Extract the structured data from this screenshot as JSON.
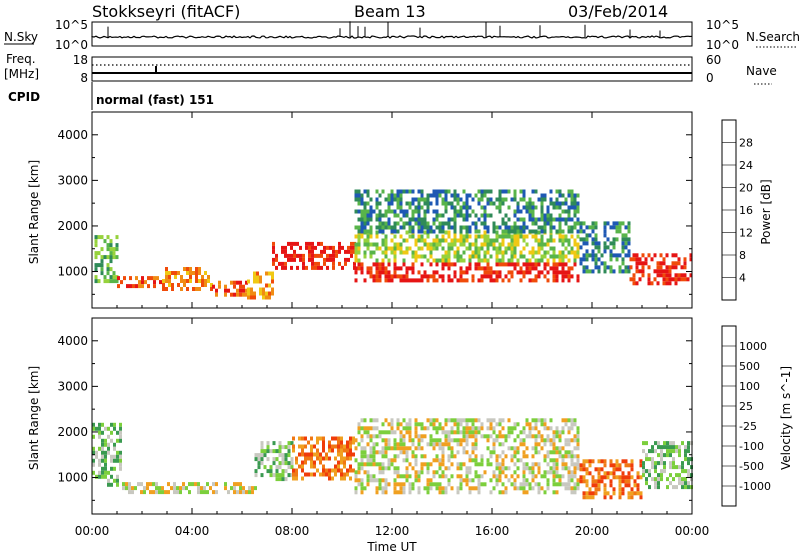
{
  "header": {
    "station": "Stokkseyri (fitACF)",
    "beam": "Beam 13",
    "date": "03/Feb/2014"
  },
  "strips": {
    "nsky_label": "N.Sky",
    "nsky_ticks": [
      "10^5",
      "10^0"
    ],
    "nsearch_label": "N.Search",
    "nsearch_ticks": [
      "10^5",
      "10^0"
    ],
    "freq_label_top": "Freq.",
    "freq_label_bottom": "[MHz]",
    "freq_ticks": [
      "18",
      "8"
    ],
    "nave_label": "Nave",
    "nave_ticks": [
      "60",
      "0"
    ],
    "cpid_label": "CPID",
    "cpid_value": "normal (fast) 151"
  },
  "chart_data": [
    {
      "type": "heatmap",
      "name": "power",
      "ylabel": "Slant Range [km]",
      "yticks": [
        "4000",
        "3000",
        "2000",
        "1000"
      ],
      "ylim": [
        200,
        4500
      ],
      "xlim": [
        0,
        24
      ],
      "colorbar": {
        "label": "Power [dB]",
        "ticks": [
          "28",
          "24",
          "20",
          "16",
          "12",
          "8",
          "4"
        ],
        "colors": [
          "#0a1fd6",
          "#1e58b4",
          "#2f8a58",
          "#58b44a",
          "#96d23c",
          "#f0c814",
          "#f08c14",
          "#f04b0a",
          "#e61414"
        ]
      },
      "bands": [
        {
          "x": [
            0.1,
            1.0
          ],
          "y": [
            800,
            1800
          ],
          "level": 3
        },
        {
          "x": [
            1.0,
            2.8
          ],
          "y": [
            650,
            900
          ],
          "level": 7
        },
        {
          "x": [
            2.8,
            4.8
          ],
          "y": [
            650,
            1100
          ],
          "level": 6
        },
        {
          "x": [
            4.8,
            6.2
          ],
          "y": [
            500,
            800
          ],
          "level": 7
        },
        {
          "x": [
            6.2,
            7.2
          ],
          "y": [
            400,
            1000
          ],
          "level": 6
        },
        {
          "x": [
            7.2,
            10.5
          ],
          "y": [
            1100,
            1650
          ],
          "level": 8
        },
        {
          "x": [
            10.5,
            19.5
          ],
          "y": [
            800,
            1200
          ],
          "level": 8
        },
        {
          "x": [
            10.5,
            19.5
          ],
          "y": [
            1200,
            1900
          ],
          "level": 4
        },
        {
          "x": [
            10.5,
            19.5
          ],
          "y": [
            1900,
            2800
          ],
          "level": 2
        },
        {
          "x": [
            19.5,
            21.5
          ],
          "y": [
            1000,
            2100
          ],
          "level": 2
        },
        {
          "x": [
            21.5,
            24.0
          ],
          "y": [
            700,
            1400
          ],
          "level": 8
        }
      ]
    },
    {
      "type": "heatmap",
      "name": "velocity",
      "ylabel": "Slant Range [km]",
      "yticks": [
        "4000",
        "3000",
        "2000",
        "1000"
      ],
      "ylim": [
        200,
        4500
      ],
      "xlim": [
        0,
        24
      ],
      "xticks": [
        "00:00",
        "04:00",
        "08:00",
        "12:00",
        "16:00",
        "20:00",
        "00:00"
      ],
      "xlabel": "Time UT",
      "colorbar": {
        "label": "Velocity [m s^-1]",
        "ticks": [
          "1000",
          "500",
          "100",
          "25",
          "-25",
          "-100",
          "-500",
          "-1000"
        ],
        "colors": [
          "#2040c0",
          "#2d7a96",
          "#3a9a50",
          "#7ccf3c",
          "#c8c8c0",
          "#f0a020",
          "#f07814",
          "#f03c0a",
          "#e61414"
        ]
      },
      "bands": [
        {
          "x": [
            0.0,
            1.2
          ],
          "y": [
            800,
            2200
          ],
          "level": 3
        },
        {
          "x": [
            1.2,
            6.5
          ],
          "y": [
            700,
            900
          ],
          "level": 4
        },
        {
          "x": [
            6.5,
            8.0
          ],
          "y": [
            1000,
            1800
          ],
          "level": 3
        },
        {
          "x": [
            8.0,
            10.5
          ],
          "y": [
            1000,
            1900
          ],
          "level": 6
        },
        {
          "x": [
            10.5,
            19.5
          ],
          "y": [
            700,
            2300
          ],
          "level": 4
        },
        {
          "x": [
            19.5,
            22.0
          ],
          "y": [
            600,
            1400
          ],
          "level": 6
        },
        {
          "x": [
            22.0,
            24.0
          ],
          "y": [
            800,
            1800
          ],
          "level": 3
        }
      ]
    }
  ]
}
